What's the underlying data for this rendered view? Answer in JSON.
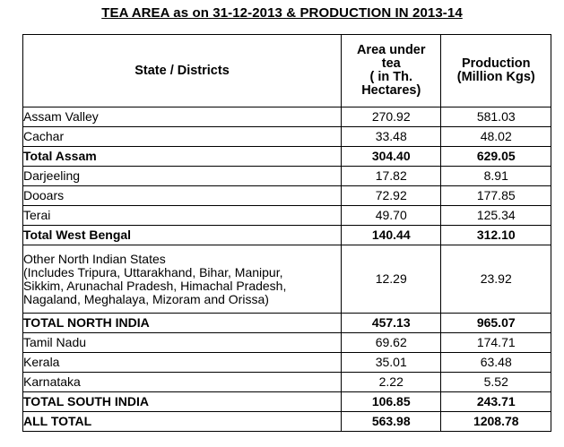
{
  "title": "TEA AREA as on 31-12-2013 & PRODUCTION IN 2013-14",
  "table": {
    "headers": {
      "state": "State / Districts",
      "area": [
        "Area under",
        "tea",
        "( in Th.",
        "Hectares)"
      ],
      "production": [
        "Production",
        "(Million Kgs)"
      ]
    },
    "rows": [
      {
        "name": "Assam Valley",
        "area": "270.92",
        "production": "581.03",
        "bold": false
      },
      {
        "name": "Cachar",
        "area": "33.48",
        "production": "48.02",
        "bold": false
      },
      {
        "name": "Total Assam",
        "area": "304.40",
        "production": "629.05",
        "bold": true
      },
      {
        "name": "Darjeeling",
        "area": "17.82",
        "production": "8.91",
        "bold": false
      },
      {
        "name": "Dooars",
        "area": "72.92",
        "production": "177.85",
        "bold": false
      },
      {
        "name": "Terai",
        "area": "49.70",
        "production": "125.34",
        "bold": false
      },
      {
        "name": "Total West Bengal",
        "area": "140.44",
        "production": "312.10",
        "bold": true
      },
      {
        "name_lines": [
          "Other North Indian States",
          "(Includes Tripura, Uttarakhand, Bihar, Manipur,",
          "Sikkim, Arunachal Pradesh, Himachal Pradesh,",
          "Nagaland,  Meghalaya, Mizoram and Orissa)"
        ],
        "area": "12.29",
        "production": "23.92",
        "bold": false
      },
      {
        "name": "TOTAL NORTH INDIA",
        "area": "457.13",
        "production": "965.07",
        "bold": true
      },
      {
        "name": "Tamil Nadu",
        "area": "69.62",
        "production": "174.71",
        "bold": false
      },
      {
        "name": "Kerala",
        "area": "35.01",
        "production": "63.48",
        "bold": false
      },
      {
        "name": "Karnataka",
        "area": "2.22",
        "production": "5.52",
        "bold": false
      },
      {
        "name": "TOTAL SOUTH INDIA",
        "area": "106.85",
        "production": "243.71",
        "bold": true
      },
      {
        "name": "ALL TOTAL",
        "area": "563.98",
        "production": "1208.78",
        "bold": true
      }
    ]
  }
}
